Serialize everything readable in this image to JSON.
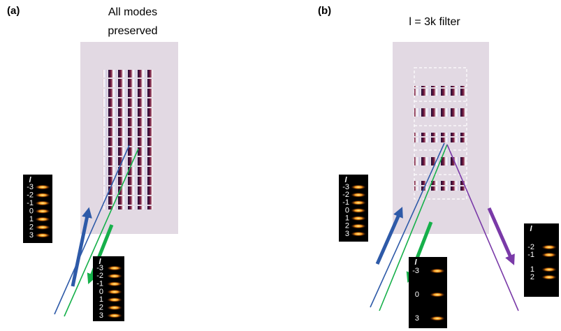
{
  "panels": [
    {
      "label": "(a)",
      "title": [
        "All modes",
        "preserved"
      ],
      "insets": [
        {
          "symbol": "l",
          "modes": [
            "-3",
            "-2",
            "-1",
            "0",
            "1",
            "2",
            "3"
          ]
        },
        {
          "symbol": "l",
          "modes": [
            "-3",
            "-2",
            "-1",
            "0",
            "1",
            "2",
            "3"
          ]
        }
      ]
    },
    {
      "label": "(b)",
      "title": [
        "l = 3k filter"
      ],
      "insets": [
        {
          "symbol": "l",
          "modes": [
            "-3",
            "-2",
            "-1",
            "0",
            "1",
            "2",
            "3"
          ]
        },
        {
          "symbol": "l",
          "modes": [
            "-3",
            "0",
            "3"
          ]
        },
        {
          "symbol": "l",
          "modes": [
            "-2",
            "-1",
            "1",
            "2"
          ]
        }
      ]
    }
  ]
}
